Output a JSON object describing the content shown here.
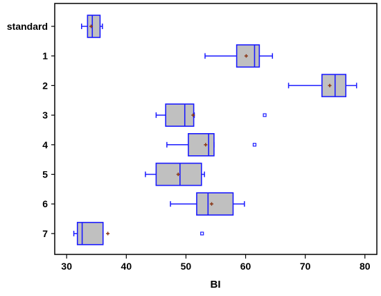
{
  "chart_data": {
    "type": "boxplot",
    "orientation": "horizontal",
    "xlabel": "BI",
    "ylabel": "",
    "xlim": [
      28,
      82
    ],
    "x_ticks": [
      "30",
      "40",
      "50",
      "60",
      "70",
      "80"
    ],
    "x_tick_values": [
      30,
      40,
      50,
      60,
      70,
      80
    ],
    "grid": false,
    "colors": {
      "box_fill": "#c0c0c0",
      "box_stroke": "#1a1aff",
      "mean_marker": "#8b3a1a",
      "outlier": "#1a1aff"
    },
    "categories": [
      "standard",
      "1",
      "2",
      "3",
      "4",
      "5",
      "6",
      "7"
    ],
    "boxes": [
      {
        "label": "standard",
        "whisker_low": 32.5,
        "q1": 33.5,
        "median": 34.3,
        "q3": 35.6,
        "whisker_high": 36.0,
        "mean": 34.1,
        "outliers": []
      },
      {
        "label": "1",
        "whisker_low": 53.2,
        "q1": 58.5,
        "median": 61.5,
        "q3": 62.3,
        "whisker_high": 64.5,
        "mean": 60.1,
        "outliers": []
      },
      {
        "label": "2",
        "whisker_low": 67.2,
        "q1": 72.8,
        "median": 75.0,
        "q3": 76.8,
        "whisker_high": 78.6,
        "mean": 74.1,
        "outliers": []
      },
      {
        "label": "3",
        "whisker_low": 45.0,
        "q1": 46.6,
        "median": 49.8,
        "q3": 51.3,
        "whisker_high": 51.4,
        "mean": 51.2,
        "outliers": [
          63.2
        ]
      },
      {
        "label": "4",
        "whisker_low": 46.8,
        "q1": 50.4,
        "median": 53.8,
        "q3": 54.7,
        "whisker_high": 54.7,
        "mean": 53.3,
        "outliers": [
          61.5
        ]
      },
      {
        "label": "5",
        "whisker_low": 43.2,
        "q1": 45.0,
        "median": 49.0,
        "q3": 52.6,
        "whisker_high": 53.1,
        "mean": 48.7,
        "outliers": []
      },
      {
        "label": "6",
        "whisker_low": 47.4,
        "q1": 51.8,
        "median": 53.7,
        "q3": 57.9,
        "whisker_high": 59.8,
        "mean": 54.3,
        "outliers": []
      },
      {
        "label": "7",
        "whisker_low": 31.2,
        "q1": 31.8,
        "median": 32.6,
        "q3": 36.1,
        "whisker_high": 36.1,
        "mean": 36.9,
        "outliers": [
          52.7
        ]
      }
    ]
  }
}
